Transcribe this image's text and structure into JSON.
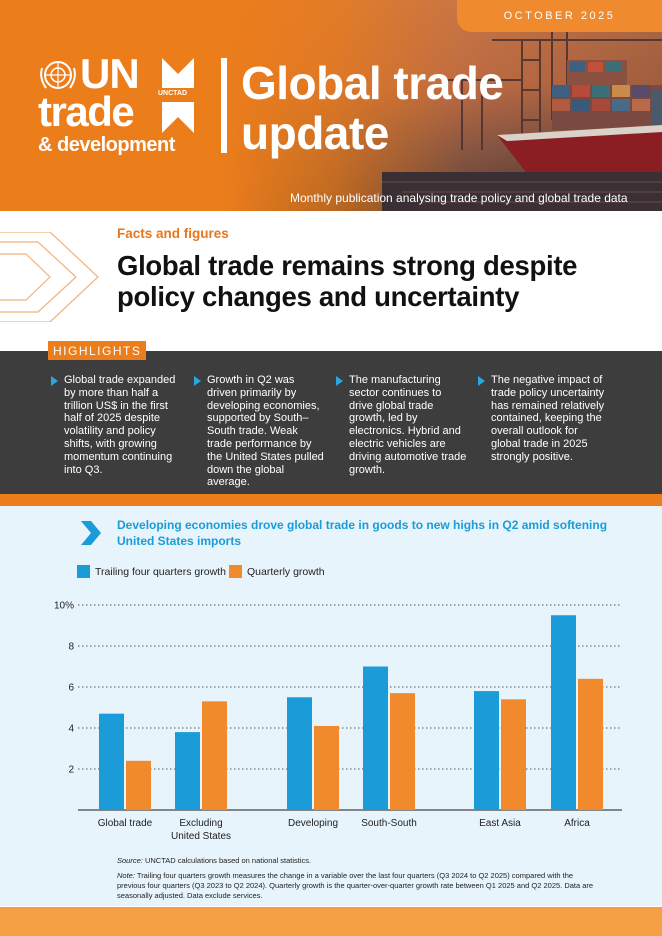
{
  "header": {
    "date": "OCTOBER 2025",
    "logo_un": "UN",
    "logo_trade": "trade",
    "logo_dev": "& development",
    "logo_unctad": "UNCTAD",
    "title_line1": "Global trade",
    "title_line2": "update",
    "subtitle": "Monthly publication analysing trade policy and global trade data"
  },
  "facts": {
    "label": "Facts and figures",
    "headline": "Global trade remains strong despite policy changes and uncertainty"
  },
  "highlights": {
    "tag": "HIGHLIGHTS",
    "items": [
      "Global trade expanded by more than half a trillion US$ in the first half of 2025 despite volatility and policy shifts, with growing momentum continuing into Q3.",
      "Growth in Q2 was driven primarily by developing economies, supported by South–South trade. Weak trade performance by the United States pulled down the global average.",
      "The manufacturing sector continues to drive global trade growth, led by electronics. Hybrid and electric vehicles are driving automotive trade growth.",
      "The negative impact of trade policy uncertainty has remained relatively contained, keeping the overall outlook for global trade in 2025 strongly positive."
    ]
  },
  "chart_section": {
    "title": "Developing economies drove global trade in goods to new highs in Q2 amid softening United States imports",
    "source_label": "Source:",
    "source_text": " UNCTAD calculations based on national statistics.",
    "note_label": "Note:",
    "note_text": " Trailing four quarters growth measures the change in a variable over the last four quarters (Q3 2024 to Q2 2025) compared with the previous four quarters (Q3 2023 to Q2 2024). Quarterly growth is the quarter-over-quarter growth rate between Q1 2025 and Q2 2025. Data are seasonally adjusted. Data exclude services."
  },
  "colors": {
    "orange": "#ec7d1b",
    "blue": "#1b9cd8",
    "dark": "#3d3d3d"
  },
  "chart_data": {
    "type": "bar",
    "categories": [
      "Global trade",
      "Excluding United States",
      "Developing",
      "South-South",
      "East Asia",
      "Africa"
    ],
    "category_lines": [
      [
        "Global trade"
      ],
      [
        "Excluding",
        "United States"
      ],
      [
        "Developing"
      ],
      [
        "South-South"
      ],
      [
        "East Asia"
      ],
      [
        "Africa"
      ]
    ],
    "series": [
      {
        "name": "Trailing four quarters growth",
        "color": "#1b9cd8",
        "values": [
          4.7,
          3.8,
          5.5,
          7.0,
          5.8,
          9.5
        ]
      },
      {
        "name": "Quarterly growth",
        "color": "#f08a2c",
        "values": [
          2.4,
          5.3,
          4.1,
          5.7,
          5.4,
          6.4
        ]
      }
    ],
    "ylim": [
      0,
      10
    ],
    "yticks": [
      2,
      4,
      6,
      8,
      10
    ],
    "ytick_labels": [
      "2",
      "4",
      "6",
      "8",
      "10%"
    ],
    "xlabel": "",
    "ylabel": "",
    "grid": true,
    "legend": "top-left"
  }
}
